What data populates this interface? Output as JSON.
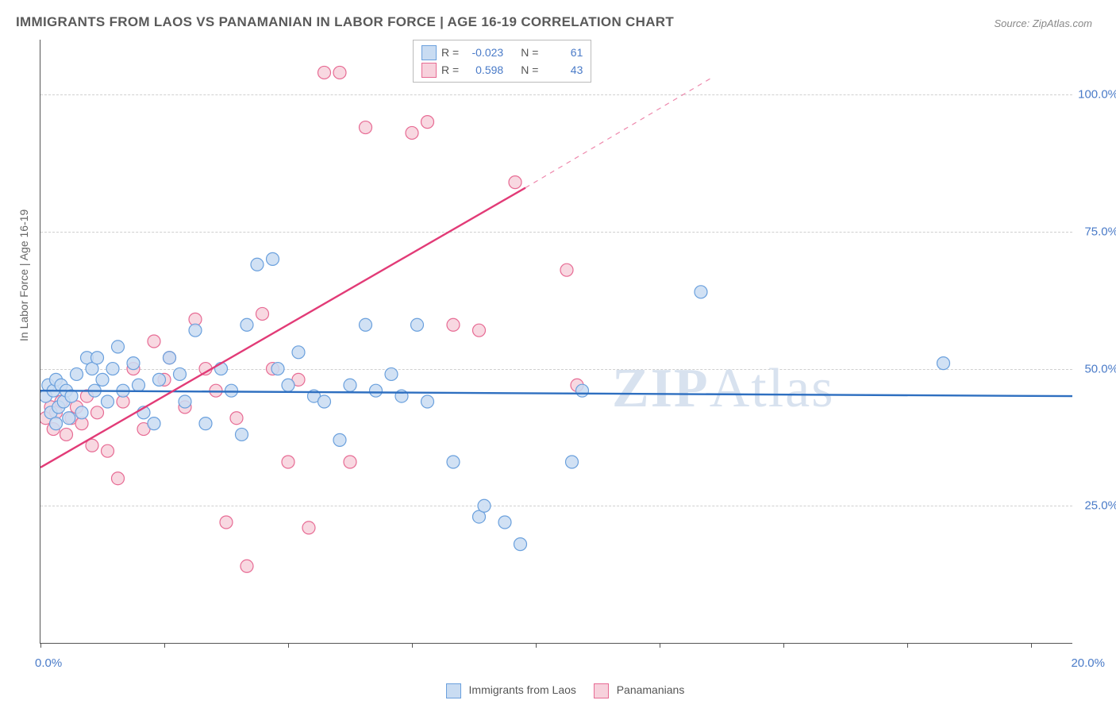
{
  "title": "IMMIGRANTS FROM LAOS VS PANAMANIAN IN LABOR FORCE | AGE 16-19 CORRELATION CHART",
  "source": "Source: ZipAtlas.com",
  "y_axis_label": "In Labor Force | Age 16-19",
  "watermark_bold": "ZIP",
  "watermark_light": "Atlas",
  "chart": {
    "type": "scatter",
    "xlim": [
      0,
      20
    ],
    "ylim": [
      0,
      110
    ],
    "x_ticks": [
      0,
      2.4,
      4.8,
      7.2,
      9.6,
      12,
      14.4,
      16.8,
      19.2
    ],
    "x_tick_labels": {
      "0": "0.0%",
      "20": "20.0%"
    },
    "y_ticks": [
      25,
      50,
      75,
      100
    ],
    "y_tick_labels": [
      "25.0%",
      "50.0%",
      "75.0%",
      "100.0%"
    ],
    "background_color": "#ffffff",
    "grid_color": "#d0d0d0",
    "marker_radius": 8,
    "marker_stroke_width": 1.2,
    "line_width": 2.4,
    "series": [
      {
        "name": "Immigrants from Laos",
        "legend_label": "Immigrants from Laos",
        "fill": "#c9dcf2",
        "stroke": "#6aa0dd",
        "line_color": "#2e6fc0",
        "R": "-0.023",
        "N": "61",
        "trend": {
          "x1": 0,
          "y1": 46,
          "x2": 20,
          "y2": 45
        },
        "points": [
          [
            0.1,
            45
          ],
          [
            0.15,
            47
          ],
          [
            0.2,
            42
          ],
          [
            0.25,
            46
          ],
          [
            0.3,
            40
          ],
          [
            0.3,
            48
          ],
          [
            0.35,
            43
          ],
          [
            0.4,
            47
          ],
          [
            0.45,
            44
          ],
          [
            0.5,
            46
          ],
          [
            0.55,
            41
          ],
          [
            0.6,
            45
          ],
          [
            0.7,
            49
          ],
          [
            0.8,
            42
          ],
          [
            0.9,
            52
          ],
          [
            1.0,
            50
          ],
          [
            1.05,
            46
          ],
          [
            1.1,
            52
          ],
          [
            1.2,
            48
          ],
          [
            1.3,
            44
          ],
          [
            1.4,
            50
          ],
          [
            1.5,
            54
          ],
          [
            1.6,
            46
          ],
          [
            1.8,
            51
          ],
          [
            1.9,
            47
          ],
          [
            2.0,
            42
          ],
          [
            2.2,
            40
          ],
          [
            2.3,
            48
          ],
          [
            2.5,
            52
          ],
          [
            2.7,
            49
          ],
          [
            2.8,
            44
          ],
          [
            3.0,
            57
          ],
          [
            3.2,
            40
          ],
          [
            3.5,
            50
          ],
          [
            3.7,
            46
          ],
          [
            3.9,
            38
          ],
          [
            4.0,
            58
          ],
          [
            4.2,
            69
          ],
          [
            4.5,
            70
          ],
          [
            4.6,
            50
          ],
          [
            4.8,
            47
          ],
          [
            5.0,
            53
          ],
          [
            5.3,
            45
          ],
          [
            5.5,
            44
          ],
          [
            5.8,
            37
          ],
          [
            6.0,
            47
          ],
          [
            6.3,
            58
          ],
          [
            6.5,
            46
          ],
          [
            6.8,
            49
          ],
          [
            7.0,
            45
          ],
          [
            7.3,
            58
          ],
          [
            7.5,
            44
          ],
          [
            8.0,
            33
          ],
          [
            8.5,
            23
          ],
          [
            8.6,
            25
          ],
          [
            9.0,
            22
          ],
          [
            9.3,
            18
          ],
          [
            10.3,
            33
          ],
          [
            10.5,
            46
          ],
          [
            12.8,
            64
          ],
          [
            17.5,
            51
          ]
        ]
      },
      {
        "name": "Panamanians",
        "legend_label": "Panamanians",
        "fill": "#f7d1dc",
        "stroke": "#e76b94",
        "line_color": "#e23b77",
        "R": "0.598",
        "N": "43",
        "trend_solid": {
          "x1": 0,
          "y1": 32,
          "x2": 9.4,
          "y2": 83
        },
        "trend_dashed": {
          "x1": 9.4,
          "y1": 83,
          "x2": 13.0,
          "y2": 103
        },
        "points": [
          [
            0.1,
            41
          ],
          [
            0.2,
            43
          ],
          [
            0.25,
            39
          ],
          [
            0.3,
            42
          ],
          [
            0.4,
            44
          ],
          [
            0.5,
            38
          ],
          [
            0.6,
            41
          ],
          [
            0.7,
            43
          ],
          [
            0.8,
            40
          ],
          [
            0.9,
            45
          ],
          [
            1.0,
            36
          ],
          [
            1.1,
            42
          ],
          [
            1.3,
            35
          ],
          [
            1.5,
            30
          ],
          [
            1.6,
            44
          ],
          [
            1.8,
            50
          ],
          [
            2.0,
            39
          ],
          [
            2.2,
            55
          ],
          [
            2.4,
            48
          ],
          [
            2.5,
            52
          ],
          [
            2.8,
            43
          ],
          [
            3.0,
            59
          ],
          [
            3.2,
            50
          ],
          [
            3.4,
            46
          ],
          [
            3.6,
            22
          ],
          [
            3.8,
            41
          ],
          [
            4.0,
            14
          ],
          [
            4.3,
            60
          ],
          [
            4.5,
            50
          ],
          [
            4.8,
            33
          ],
          [
            5.0,
            48
          ],
          [
            5.2,
            21
          ],
          [
            5.5,
            104
          ],
          [
            5.8,
            104
          ],
          [
            6.0,
            33
          ],
          [
            6.3,
            94
          ],
          [
            7.2,
            93
          ],
          [
            7.5,
            95
          ],
          [
            8.0,
            58
          ],
          [
            8.5,
            57
          ],
          [
            9.2,
            84
          ],
          [
            10.2,
            68
          ],
          [
            10.4,
            47
          ]
        ]
      }
    ]
  },
  "legend_top": {
    "r_label": "R =",
    "n_label": "N ="
  }
}
